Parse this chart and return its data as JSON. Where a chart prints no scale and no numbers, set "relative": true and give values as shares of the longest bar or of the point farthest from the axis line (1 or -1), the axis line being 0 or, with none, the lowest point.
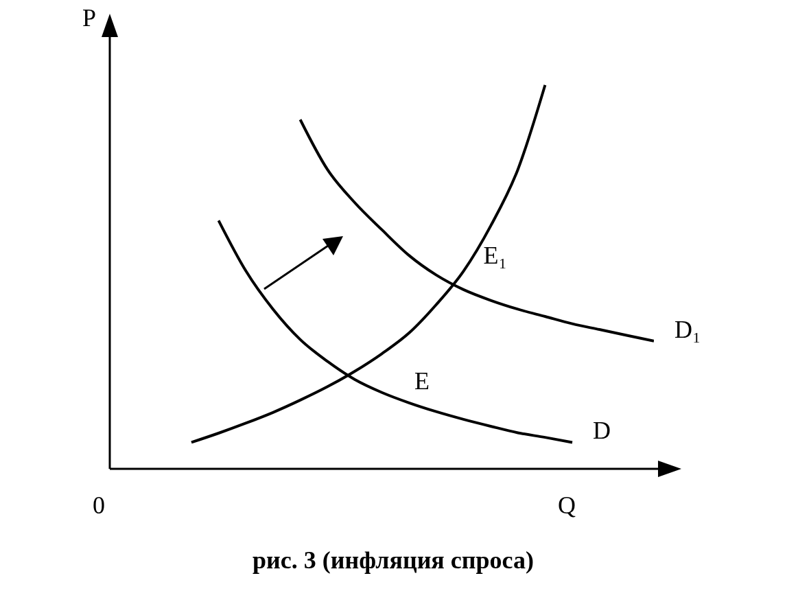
{
  "chart_data": {
    "type": "line",
    "relative": true,
    "title": "рис. 3 (инфляция спроса)",
    "xlabel": "Q",
    "ylabel": "P",
    "marker": "none",
    "line_style": "solid",
    "annotations": [
      "E",
      "E₁",
      "0"
    ],
    "categories": [
      null,
      null,
      null,
      null,
      null,
      null,
      null,
      null,
      null,
      null,
      null,
      null,
      null,
      null,
      null,
      null,
      null,
      null
    ],
    "series": [
      {
        "color": "#000000",
        "values": [
          0.069,
          0.093,
          0.119,
          0.147,
          0.179,
          0.214,
          0.254,
          0.3,
          0.354,
          0.428,
          0.515,
          0.633,
          0.78,
          1.0,
          null,
          null,
          null,
          null
        ]
      },
      {
        "name": "D",
        "color": "#000000",
        "values": [
          null,
          0.647,
          0.516,
          0.416,
          0.337,
          0.28,
          0.233,
          0.199,
          0.172,
          0.149,
          0.129,
          0.111,
          0.094,
          0.082,
          0.069,
          null,
          null,
          null
        ]
      },
      {
        "name": "D₁",
        "color": "#000000",
        "values": [
          null,
          null,
          null,
          null,
          0.91,
          0.78,
          0.694,
          0.623,
          0.556,
          0.505,
          0.467,
          0.439,
          0.416,
          0.397,
          0.378,
          0.363,
          0.348,
          0.333
        ]
      }
    ]
  }
}
